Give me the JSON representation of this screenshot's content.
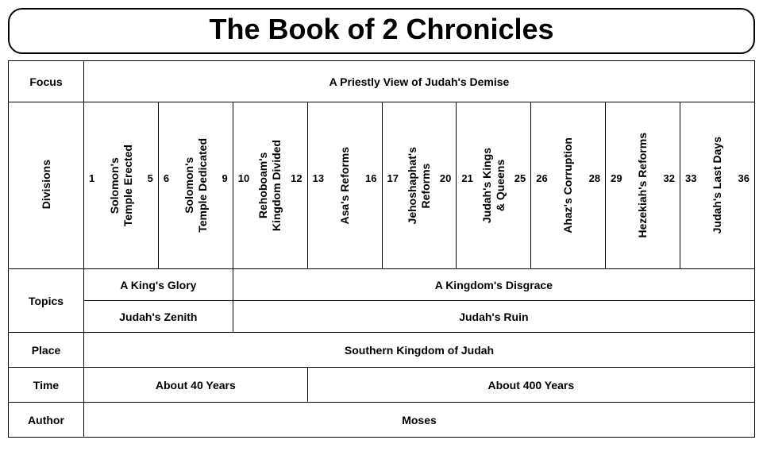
{
  "title": "The Book of 2 Chronicles",
  "labels": {
    "focus": "Focus",
    "divisions": "Divisions",
    "topics": "Topics",
    "place": "Place",
    "time": "Time",
    "author": "Author"
  },
  "focus": "A Priestly View of Judah's Demise",
  "divisions": [
    {
      "label_l1": "Solomon's",
      "label_l2": "Temple Erected",
      "start": "1",
      "end": "5"
    },
    {
      "label_l1": "Solomon's",
      "label_l2": "Temple Dedicated",
      "start": "6",
      "end": "9"
    },
    {
      "label_l1": "Rehoboam's",
      "label_l2": "Kingdom Divided",
      "start": "10",
      "end": "12"
    },
    {
      "label_l1": "Asa's Reforms",
      "label_l2": "",
      "start": "13",
      "end": "16"
    },
    {
      "label_l1": "Jehoshaphat's",
      "label_l2": "Reforms",
      "start": "17",
      "end": "20"
    },
    {
      "label_l1": "Judah's Kings",
      "label_l2": "& Queens",
      "start": "21",
      "end": "25"
    },
    {
      "label_l1": "Ahaz's Corruption",
      "label_l2": "",
      "start": "26",
      "end": "28"
    },
    {
      "label_l1": "Hezekiah's Reforms",
      "label_l2": "",
      "start": "29",
      "end": "32"
    },
    {
      "label_l1": "Judah's Last Days",
      "label_l2": "",
      "start": "33",
      "end": "36"
    }
  ],
  "topics_a": {
    "left": "A King's Glory",
    "right": "A Kingdom's Disgrace"
  },
  "topics_b": {
    "left": "Judah's Zenith",
    "right": "Judah's Ruin"
  },
  "place": "Southern Kingdom of Judah",
  "time": {
    "left": "About 40 Years",
    "right": "About 400 Years"
  },
  "author": "Moses",
  "colors": {
    "border": "#000000",
    "bg": "#ffffff",
    "text": "#000000"
  }
}
